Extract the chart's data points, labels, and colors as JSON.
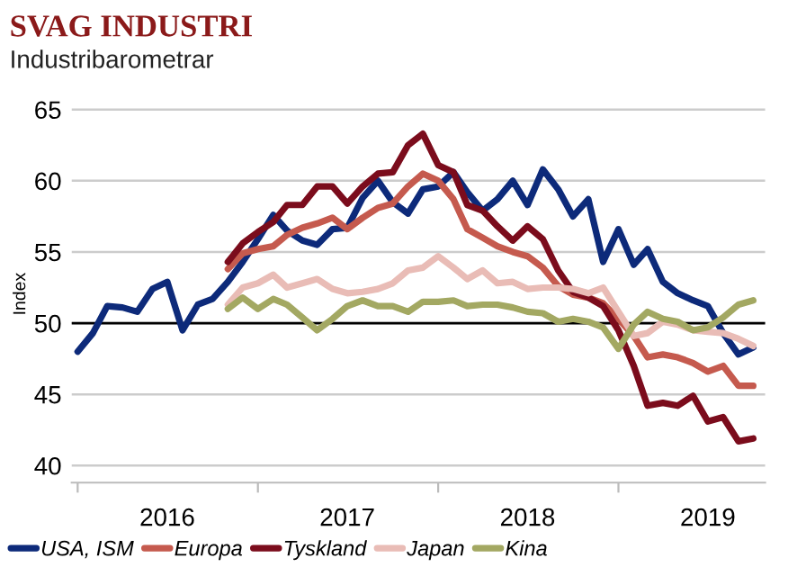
{
  "chart_data": {
    "type": "line",
    "title": "SVAG INDUSTRI",
    "subtitle": "Industribarometrar",
    "ylabel": "Index",
    "x": [
      "2016-01",
      "2016-02",
      "2016-03",
      "2016-04",
      "2016-05",
      "2016-06",
      "2016-07",
      "2016-08",
      "2016-09",
      "2016-10",
      "2016-11",
      "2016-12",
      "2017-01",
      "2017-02",
      "2017-03",
      "2017-04",
      "2017-05",
      "2017-06",
      "2017-07",
      "2017-08",
      "2017-09",
      "2017-10",
      "2017-11",
      "2017-12",
      "2018-01",
      "2018-02",
      "2018-03",
      "2018-04",
      "2018-05",
      "2018-06",
      "2018-07",
      "2018-08",
      "2018-09",
      "2018-10",
      "2018-11",
      "2018-12",
      "2019-01",
      "2019-02",
      "2019-03",
      "2019-04",
      "2019-05",
      "2019-06",
      "2019-07",
      "2019-08",
      "2019-09",
      "2019-10"
    ],
    "series": [
      {
        "name": "USA, ISM",
        "color": "#0d2a7a",
        "values": [
          48.0,
          49.3,
          51.2,
          51.1,
          50.8,
          52.4,
          52.9,
          49.5,
          51.3,
          51.7,
          52.9,
          54.3,
          55.9,
          57.6,
          56.5,
          55.8,
          55.5,
          56.6,
          56.7,
          58.8,
          60.0,
          58.5,
          57.7,
          59.4,
          59.6,
          60.6,
          59.2,
          57.9,
          58.7,
          60.0,
          58.3,
          60.8,
          59.4,
          57.5,
          58.7,
          54.3,
          56.6,
          54.1,
          55.2,
          52.9,
          52.1,
          51.6,
          51.2,
          49.3,
          47.8,
          48.3
        ]
      },
      {
        "name": "Europa",
        "color": "#c55a4e",
        "values": [
          null,
          null,
          null,
          null,
          null,
          null,
          null,
          null,
          null,
          null,
          53.8,
          54.9,
          55.2,
          55.4,
          56.2,
          56.7,
          57.0,
          57.4,
          56.6,
          57.4,
          58.1,
          58.4,
          59.6,
          60.5,
          60.0,
          58.7,
          56.6,
          56.0,
          55.4,
          55.0,
          54.7,
          53.9,
          52.6,
          52.0,
          51.8,
          51.4,
          50.3,
          49.1,
          47.6,
          47.8,
          47.6,
          47.2,
          46.6,
          47.0,
          45.6,
          45.6
        ]
      },
      {
        "name": "Tyskland",
        "color": "#7b0c1c",
        "values": [
          null,
          null,
          null,
          null,
          null,
          null,
          null,
          null,
          null,
          null,
          54.3,
          55.6,
          56.4,
          57.1,
          58.3,
          58.3,
          59.6,
          59.6,
          58.4,
          59.6,
          60.5,
          60.6,
          62.5,
          63.3,
          61.1,
          60.6,
          58.3,
          57.9,
          56.8,
          55.8,
          56.8,
          55.9,
          53.7,
          52.2,
          51.8,
          51.2,
          49.5,
          47.0,
          44.2,
          44.4,
          44.2,
          44.9,
          43.1,
          43.4,
          41.7,
          41.9
        ]
      },
      {
        "name": "Japan",
        "color": "#e9bcb6",
        "values": [
          null,
          null,
          null,
          null,
          null,
          null,
          null,
          null,
          null,
          null,
          51.3,
          52.5,
          52.8,
          53.4,
          52.5,
          52.8,
          53.1,
          52.4,
          52.1,
          52.2,
          52.4,
          52.8,
          53.7,
          53.9,
          54.7,
          53.9,
          53.1,
          53.7,
          52.8,
          52.9,
          52.4,
          52.5,
          52.5,
          52.4,
          52.1,
          52.5,
          50.8,
          49.1,
          49.3,
          50.1,
          49.9,
          49.5,
          49.4,
          49.3,
          48.9,
          48.4
        ]
      },
      {
        "name": "Kina",
        "color": "#a3a862",
        "values": [
          null,
          null,
          null,
          null,
          null,
          null,
          null,
          null,
          null,
          null,
          51.0,
          51.8,
          51.0,
          51.7,
          51.3,
          50.4,
          49.5,
          50.3,
          51.2,
          51.6,
          51.2,
          51.2,
          50.8,
          51.5,
          51.5,
          51.6,
          51.2,
          51.3,
          51.3,
          51.1,
          50.8,
          50.7,
          50.1,
          50.3,
          50.1,
          49.7,
          48.2,
          49.9,
          50.8,
          50.3,
          50.1,
          49.5,
          49.7,
          50.4,
          51.3,
          51.6
        ]
      }
    ],
    "xlim": [
      "2015-12-20",
      "2019-10-25"
    ],
    "xticks": [
      {
        "value": "2016-01",
        "label": null
      },
      {
        "value": "2016-07",
        "label": "2016"
      },
      {
        "value": "2017-01",
        "label": null
      },
      {
        "value": "2017-07",
        "label": "2017"
      },
      {
        "value": "2018-01",
        "label": null
      },
      {
        "value": "2018-07",
        "label": "2018"
      },
      {
        "value": "2019-01",
        "label": null
      },
      {
        "value": "2019-07",
        "label": "2019"
      }
    ],
    "ylim": [
      38.8,
      65.3
    ],
    "yticks": [
      40,
      45,
      50,
      55,
      60,
      65
    ],
    "ref_lines": [
      {
        "axis": "y",
        "value": 50,
        "color": "#000000"
      }
    ],
    "grid": "y",
    "legend": "bottom",
    "marker": "none",
    "line_style": "solid"
  }
}
